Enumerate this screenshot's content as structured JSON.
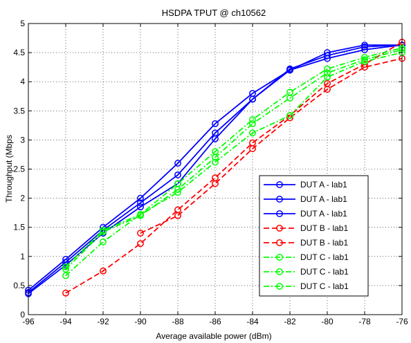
{
  "chart_data": {
    "type": "line",
    "title": "HSDPA TPUT @ ch10562",
    "xlabel": "Average available power (dBm)",
    "ylabel": "Throughput (Mbps",
    "xlim": [
      -96,
      -76
    ],
    "ylim": [
      0,
      5
    ],
    "xticks": [
      -96,
      -94,
      -92,
      -90,
      -88,
      -86,
      -84,
      -82,
      -80,
      -78,
      -76
    ],
    "yticks": [
      0,
      0.5,
      1,
      1.5,
      2,
      2.5,
      3,
      3.5,
      4,
      4.5,
      5
    ],
    "grid": "dotted",
    "legend_placement": "bottom-right",
    "series": [
      {
        "name": "DUT A - lab1",
        "color": "#0000ff",
        "style": "solid",
        "marker": "circle",
        "x": [
          -96,
          -94,
          -92,
          -90,
          -88,
          -86,
          -84,
          -82,
          -80,
          -78,
          -76
        ],
        "y": [
          0.42,
          0.95,
          1.5,
          2.0,
          2.6,
          3.28,
          3.8,
          4.2,
          4.5,
          4.63,
          4.63
        ]
      },
      {
        "name": "DUT A - lab1",
        "color": "#0000ff",
        "style": "solid",
        "marker": "circle",
        "x": [
          -96,
          -94,
          -92,
          -90,
          -88,
          -86,
          -84,
          -82,
          -80,
          -78,
          -76
        ],
        "y": [
          0.38,
          0.9,
          1.45,
          1.92,
          2.4,
          3.12,
          3.7,
          4.22,
          4.45,
          4.6,
          4.63
        ]
      },
      {
        "name": "DUT A - lab1",
        "color": "#0000ff",
        "style": "solid",
        "marker": "circle",
        "x": [
          -96,
          -94,
          -92,
          -90,
          -88,
          -86,
          -84,
          -82,
          -80,
          -78,
          -76
        ],
        "y": [
          0.36,
          0.85,
          1.4,
          1.85,
          2.25,
          3.02,
          3.7,
          4.2,
          4.4,
          4.55,
          4.63
        ]
      },
      {
        "name": "DUT B - lab1",
        "color": "#ff0000",
        "style": "dashed",
        "marker": "circle",
        "x": [
          -94,
          -92,
          -90,
          -88,
          -86,
          -84,
          -82,
          -80,
          -78,
          -76
        ],
        "y": [
          0.37,
          0.75,
          1.22,
          1.8,
          2.35,
          2.95,
          3.42,
          3.97,
          4.3,
          4.68
        ]
      },
      {
        "name": "DUT B - lab1",
        "color": "#ff0000",
        "style": "dashed",
        "marker": "circle",
        "x": [
          -90,
          -88,
          -86,
          -84,
          -82,
          -80,
          -78,
          -76
        ],
        "y": [
          1.4,
          1.7,
          2.25,
          2.85,
          3.38,
          3.87,
          4.25,
          4.4
        ]
      },
      {
        "name": "DUT C - lab1",
        "color": "#00ff00",
        "style": "dashdot",
        "marker": "circle",
        "x": [
          -94,
          -92,
          -90,
          -88,
          -86,
          -84,
          -82,
          -80,
          -78,
          -76
        ],
        "y": [
          0.82,
          1.45,
          1.72,
          2.25,
          2.8,
          3.35,
          3.82,
          4.22,
          4.42,
          4.58
        ]
      },
      {
        "name": "DUT C - lab1",
        "color": "#00ff00",
        "style": "dashdot",
        "marker": "circle",
        "x": [
          -94,
          -92,
          -90,
          -88,
          -86,
          -84,
          -82,
          -80,
          -78,
          -76
        ],
        "y": [
          0.78,
          1.42,
          1.7,
          2.15,
          2.7,
          3.28,
          3.72,
          4.15,
          4.38,
          4.55
        ]
      },
      {
        "name": "DUT C - lab1",
        "color": "#00ff00",
        "style": "dashdot",
        "marker": "circle",
        "x": [
          -94,
          -92,
          -90,
          -88,
          -86,
          -84,
          -82,
          -80,
          -78,
          -76
        ],
        "y": [
          0.67,
          1.25,
          1.72,
          2.1,
          2.62,
          3.12,
          3.42,
          4.08,
          4.35,
          4.5
        ]
      }
    ]
  }
}
